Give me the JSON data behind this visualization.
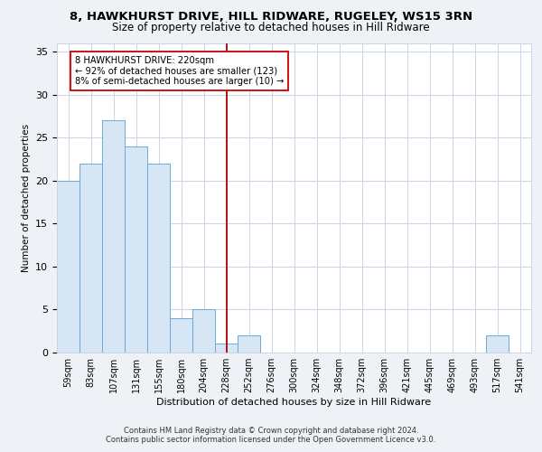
{
  "title1": "8, HAWKHURST DRIVE, HILL RIDWARE, RUGELEY, WS15 3RN",
  "title2": "Size of property relative to detached houses in Hill Ridware",
  "xlabel": "Distribution of detached houses by size in Hill Ridware",
  "ylabel": "Number of detached properties",
  "bin_labels": [
    "59sqm",
    "83sqm",
    "107sqm",
    "131sqm",
    "155sqm",
    "180sqm",
    "204sqm",
    "228sqm",
    "252sqm",
    "276sqm",
    "300sqm",
    "324sqm",
    "348sqm",
    "372sqm",
    "396sqm",
    "421sqm",
    "445sqm",
    "469sqm",
    "493sqm",
    "517sqm",
    "541sqm"
  ],
  "bar_values": [
    20,
    22,
    27,
    24,
    22,
    4,
    5,
    1,
    2,
    0,
    0,
    0,
    0,
    0,
    0,
    0,
    0,
    0,
    0,
    2,
    0
  ],
  "bar_color": "#d6e6f5",
  "bar_edgecolor": "#6aaad4",
  "vline_x": 7,
  "vline_color": "#aa0000",
  "annotation_text": "8 HAWKHURST DRIVE: 220sqm\n← 92% of detached houses are smaller (123)\n8% of semi-detached houses are larger (10) →",
  "annotation_box_edgecolor": "#cc0000",
  "annotation_box_facecolor": "#ffffff",
  "ylim": [
    0,
    36
  ],
  "yticks": [
    0,
    5,
    10,
    15,
    20,
    25,
    30,
    35
  ],
  "footnote1": "Contains HM Land Registry data © Crown copyright and database right 2024.",
  "footnote2": "Contains public sector information licensed under the Open Government Licence v3.0.",
  "background_color": "#eef2f7",
  "plot_background": "#ffffff",
  "grid_color": "#c8d4e8"
}
